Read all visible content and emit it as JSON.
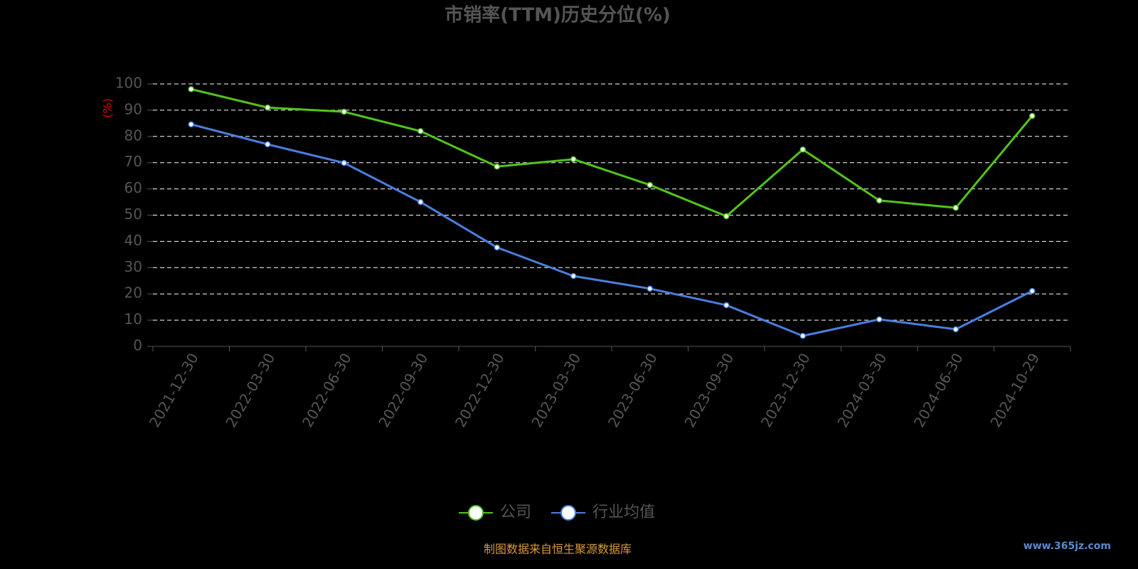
{
  "chart_data": {
    "type": "line",
    "title": "市销率(TTM)历史分位(%)",
    "y_label": "(%)",
    "categories": [
      "2021-12-30",
      "2022-03-30",
      "2022-06-30",
      "2022-09-30",
      "2022-12-30",
      "2023-03-30",
      "2023-06-30",
      "2023-09-30",
      "2023-12-30",
      "2024-03-30",
      "2024-06-30",
      "2024-10-29"
    ],
    "series": [
      {
        "name": "公司",
        "color": "#52c41a",
        "values": [
          98,
          91,
          89.4,
          82,
          68.5,
          71.3,
          61.5,
          49.6,
          75,
          55.6,
          52.8,
          87.8
        ]
      },
      {
        "name": "行业均值",
        "color": "#4a7fe0",
        "values": [
          84.6,
          77,
          69.9,
          55,
          37.7,
          26.8,
          22,
          15.7,
          4,
          10.3,
          6.5,
          21.1
        ]
      }
    ],
    "ylim": [
      0,
      100
    ],
    "yticks": [
      0,
      10,
      20,
      30,
      40,
      50,
      60,
      70,
      80,
      90,
      100
    ],
    "grid": true,
    "legend": "bottom",
    "source": "制图数据来自恒生聚源数据库",
    "watermark": "www.365jz.com"
  }
}
